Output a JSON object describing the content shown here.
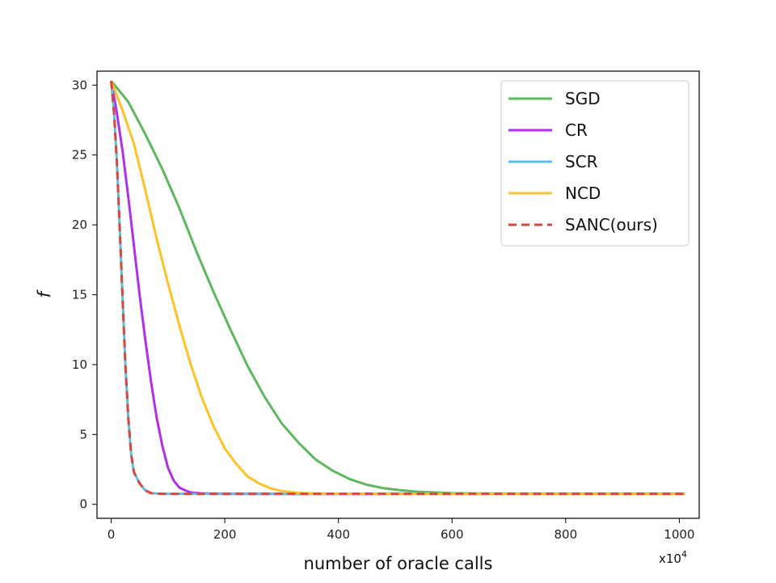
{
  "chart_data": {
    "type": "line",
    "title": "",
    "xlabel": "number of oracle calls",
    "ylabel": "f",
    "x_multiplier_label": "x10",
    "x_multiplier_exp": "4",
    "xlim": [
      -25,
      1035
    ],
    "ylim": [
      -1.0,
      31.0
    ],
    "xticks": [
      0,
      200,
      400,
      600,
      800,
      1000
    ],
    "yticks": [
      0,
      5,
      10,
      15,
      20,
      25,
      30
    ],
    "grid": false,
    "legend_position": "top-right",
    "series": [
      {
        "name": "SGD",
        "color": "#5cb85c",
        "dash": "solid",
        "points": [
          [
            0,
            30.3
          ],
          [
            30,
            28.8
          ],
          [
            60,
            26.5
          ],
          [
            90,
            24.0
          ],
          [
            120,
            21.2
          ],
          [
            150,
            18.1
          ],
          [
            180,
            15.2
          ],
          [
            210,
            12.5
          ],
          [
            240,
            9.9
          ],
          [
            270,
            7.7
          ],
          [
            300,
            5.8
          ],
          [
            330,
            4.4
          ],
          [
            360,
            3.2
          ],
          [
            390,
            2.4
          ],
          [
            420,
            1.8
          ],
          [
            450,
            1.4
          ],
          [
            480,
            1.15
          ],
          [
            510,
            1.0
          ],
          [
            540,
            0.9
          ],
          [
            570,
            0.85
          ],
          [
            600,
            0.8
          ],
          [
            650,
            0.78
          ],
          [
            700,
            0.77
          ],
          [
            800,
            0.76
          ],
          [
            1010,
            0.75
          ]
        ]
      },
      {
        "name": "CR",
        "color": "#b030e8",
        "dash": "solid",
        "points": [
          [
            0,
            30.3
          ],
          [
            10,
            28.0
          ],
          [
            20,
            25.3
          ],
          [
            30,
            22.0
          ],
          [
            40,
            18.5
          ],
          [
            50,
            15.0
          ],
          [
            60,
            11.8
          ],
          [
            70,
            8.8
          ],
          [
            80,
            6.2
          ],
          [
            90,
            4.2
          ],
          [
            100,
            2.6
          ],
          [
            110,
            1.7
          ],
          [
            120,
            1.2
          ],
          [
            130,
            1.0
          ],
          [
            140,
            0.85
          ],
          [
            160,
            0.78
          ],
          [
            200,
            0.75
          ],
          [
            400,
            0.75
          ],
          [
            600,
            0.75
          ],
          [
            800,
            0.75
          ],
          [
            1010,
            0.75
          ]
        ]
      },
      {
        "name": "SCR",
        "color": "#5bc0de",
        "dash": "solid",
        "points": [
          [
            0,
            30.3
          ],
          [
            5,
            28.0
          ],
          [
            10,
            24.5
          ],
          [
            15,
            19.8
          ],
          [
            20,
            14.8
          ],
          [
            25,
            10.0
          ],
          [
            30,
            6.2
          ],
          [
            35,
            3.6
          ],
          [
            40,
            2.3
          ],
          [
            50,
            1.5
          ],
          [
            60,
            1.0
          ],
          [
            70,
            0.8
          ],
          [
            90,
            0.75
          ],
          [
            200,
            0.75
          ],
          [
            400,
            0.75
          ],
          [
            600,
            0.75
          ],
          [
            800,
            0.75
          ],
          [
            1010,
            0.75
          ]
        ]
      },
      {
        "name": "NCD",
        "color": "#ffc125",
        "dash": "solid",
        "points": [
          [
            0,
            30.3
          ],
          [
            20,
            28.2
          ],
          [
            40,
            25.8
          ],
          [
            60,
            22.5
          ],
          [
            80,
            19.0
          ],
          [
            100,
            15.8
          ],
          [
            120,
            12.8
          ],
          [
            140,
            10.0
          ],
          [
            160,
            7.6
          ],
          [
            180,
            5.6
          ],
          [
            200,
            4.0
          ],
          [
            220,
            2.9
          ],
          [
            240,
            2.0
          ],
          [
            260,
            1.5
          ],
          [
            280,
            1.15
          ],
          [
            300,
            0.95
          ],
          [
            320,
            0.85
          ],
          [
            340,
            0.8
          ],
          [
            380,
            0.77
          ],
          [
            500,
            0.75
          ],
          [
            700,
            0.75
          ],
          [
            1010,
            0.75
          ]
        ]
      },
      {
        "name": "SANC(ours)",
        "color": "#d9463e",
        "dash": "dashed",
        "points": [
          [
            0,
            30.3
          ],
          [
            5,
            28.0
          ],
          [
            10,
            24.5
          ],
          [
            15,
            19.8
          ],
          [
            20,
            14.8
          ],
          [
            25,
            10.0
          ],
          [
            30,
            6.2
          ],
          [
            35,
            3.6
          ],
          [
            40,
            2.3
          ],
          [
            50,
            1.5
          ],
          [
            60,
            1.0
          ],
          [
            70,
            0.8
          ],
          [
            90,
            0.75
          ],
          [
            200,
            0.75
          ],
          [
            400,
            0.75
          ],
          [
            600,
            0.75
          ],
          [
            800,
            0.75
          ],
          [
            1010,
            0.75
          ]
        ]
      }
    ]
  }
}
